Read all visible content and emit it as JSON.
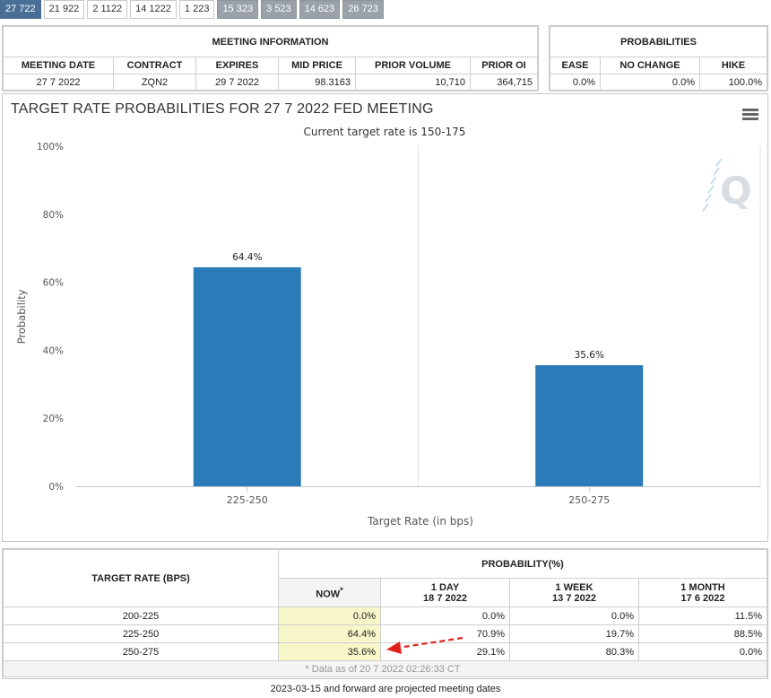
{
  "tabs": [
    {
      "label": "27 722",
      "style": "active"
    },
    {
      "label": "21 922",
      "style": "normal"
    },
    {
      "label": "2 1122",
      "style": "normal"
    },
    {
      "label": "14 1222",
      "style": "normal"
    },
    {
      "label": "1 223",
      "style": "normal"
    },
    {
      "label": "15 323",
      "style": "gray"
    },
    {
      "label": "3 523",
      "style": "gray"
    },
    {
      "label": "14 623",
      "style": "gray"
    },
    {
      "label": "26 723",
      "style": "gray"
    }
  ],
  "meeting_info": {
    "title": "MEETING INFORMATION",
    "headers": [
      "MEETING DATE",
      "CONTRACT",
      "EXPIRES",
      "MID PRICE",
      "PRIOR VOLUME",
      "PRIOR OI"
    ],
    "values": [
      "27 7 2022",
      "ZQN2",
      "29 7 2022",
      "98.3163",
      "10,710",
      "364,715"
    ]
  },
  "probabilities": {
    "title": "PROBABILITIES",
    "headers": [
      "EASE",
      "NO CHANGE",
      "HIKE"
    ],
    "values": [
      "0.0%",
      "0.0%",
      "100.0%"
    ]
  },
  "chart_panel": {
    "title": "TARGET RATE PROBABILITIES FOR 27 7 2022 FED MEETING",
    "menu_icon": "hamburger-menu-icon"
  },
  "chart_data": {
    "type": "bar",
    "title": "",
    "subtitle": "Current target rate is 150-175",
    "xlabel": "Target Rate (in bps)",
    "ylabel": "Probability",
    "categories": [
      "225-250",
      "250-275"
    ],
    "values": [
      64.4,
      35.6
    ],
    "data_labels": [
      "64.4%",
      "35.6%"
    ],
    "ylim": [
      0,
      100
    ],
    "yticks": [
      0,
      20,
      40,
      60,
      80,
      100
    ],
    "ytick_labels": [
      "0%",
      "20%",
      "40%",
      "60%",
      "80%",
      "100%"
    ],
    "bar_color": "#2b7bb9",
    "grid": "vertical",
    "legend": "none"
  },
  "prob_table": {
    "rate_header": "TARGET RATE (BPS)",
    "group_header": "PROBABILITY(%)",
    "columns": [
      {
        "label": "NOW",
        "sup": "*",
        "date": ""
      },
      {
        "label": "1 DAY",
        "sup": "",
        "date": "18 7 2022"
      },
      {
        "label": "1 WEEK",
        "sup": "",
        "date": "13 7 2022"
      },
      {
        "label": "1 MONTH",
        "sup": "",
        "date": "17 6 2022"
      }
    ],
    "rows": [
      {
        "rate": "200-225",
        "values": [
          "0.0%",
          "0.0%",
          "0.0%",
          "11.5%"
        ]
      },
      {
        "rate": "225-250",
        "values": [
          "64.4%",
          "70.9%",
          "19.7%",
          "88.5%"
        ]
      },
      {
        "rate": "250-275",
        "values": [
          "35.6%",
          "29.1%",
          "80.3%",
          "0.0%"
        ]
      }
    ],
    "footnote": "* Data as of 20 7 2022 02:26:33 CT"
  },
  "annotation": {
    "arrow_color": "#e0201b"
  },
  "bottom_note": "2023-03-15 and forward are projected meeting dates"
}
